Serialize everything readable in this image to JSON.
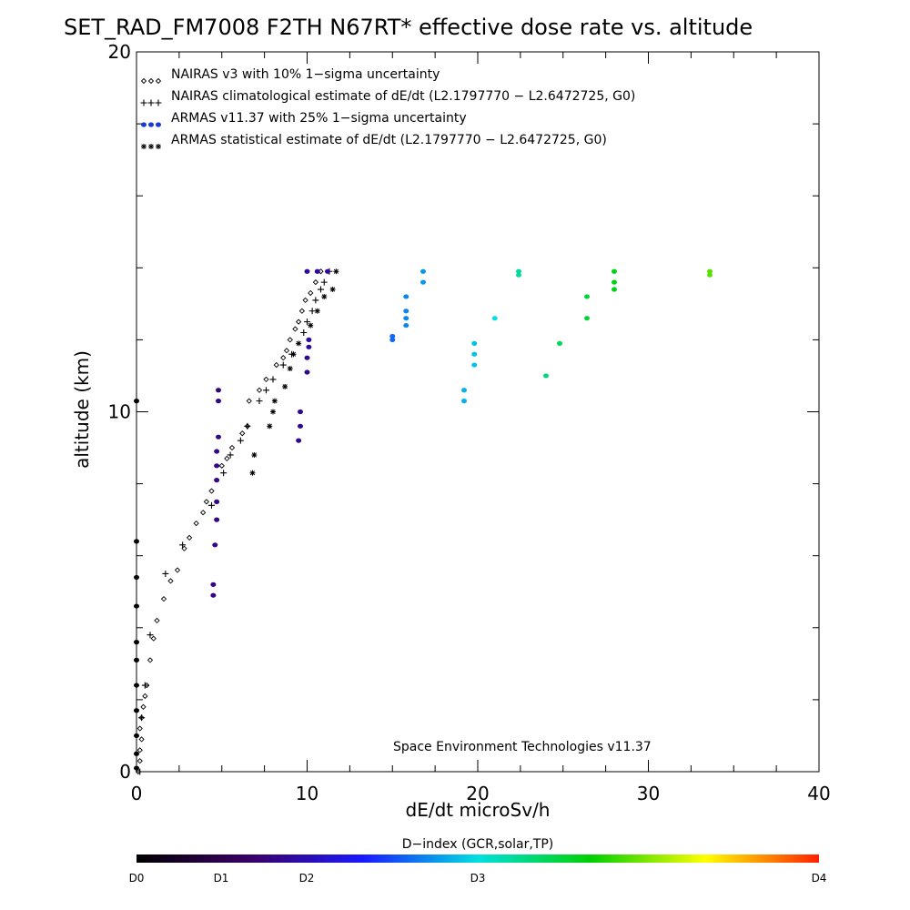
{
  "chart_data": {
    "type": "scatter",
    "title": "SET_RAD_FM7008  F2TH N67RT* effective dose rate vs. altitude",
    "xlabel": "dE/dt microSv/h",
    "ylabel": "altitude (km)",
    "xlim": [
      0,
      40
    ],
    "ylim": [
      0,
      20
    ],
    "x_ticks": [
      "0",
      "10",
      "20",
      "30",
      "40"
    ],
    "y_ticks": [
      "0",
      "10",
      "20"
    ],
    "legend_position": "top-left",
    "credit": "Space Environment Technologies v11.37",
    "colorbar": {
      "title": "D−index (GCR,solar,TP)",
      "labels": [
        "D0",
        "D1",
        "D2",
        "D3",
        "D4"
      ],
      "colors": [
        "#000000",
        "#3a0066",
        "#1a1aff",
        "#00e0e0",
        "#00d000",
        "#ffff00",
        "#ff2000"
      ]
    },
    "series": [
      {
        "name": "NAIRAS v3 with 10% 1−sigma uncertainty",
        "marker": "diamond",
        "points": [
          [
            0.1,
            0
          ],
          [
            0.2,
            0.3
          ],
          [
            0.2,
            0.6
          ],
          [
            0.3,
            0.9
          ],
          [
            0.2,
            1.2
          ],
          [
            0.3,
            1.5
          ],
          [
            0.4,
            1.8
          ],
          [
            0.5,
            2.1
          ],
          [
            0.6,
            2.4
          ],
          [
            0.8,
            3.1
          ],
          [
            1.0,
            3.7
          ],
          [
            1.2,
            4.2
          ],
          [
            1.6,
            4.8
          ],
          [
            2.0,
            5.3
          ],
          [
            2.4,
            5.6
          ],
          [
            2.8,
            6.2
          ],
          [
            3.1,
            6.5
          ],
          [
            3.5,
            6.9
          ],
          [
            3.9,
            7.2
          ],
          [
            4.1,
            7.5
          ],
          [
            4.4,
            7.8
          ],
          [
            5.0,
            8.5
          ],
          [
            5.3,
            8.7
          ],
          [
            5.6,
            9.0
          ],
          [
            6.2,
            9.4
          ],
          [
            6.5,
            9.6
          ],
          [
            6.6,
            10.3
          ],
          [
            7.2,
            10.6
          ],
          [
            7.6,
            10.9
          ],
          [
            8.2,
            11.3
          ],
          [
            8.6,
            11.5
          ],
          [
            8.8,
            11.7
          ],
          [
            9.0,
            12.0
          ],
          [
            9.3,
            12.3
          ],
          [
            9.5,
            12.5
          ],
          [
            9.7,
            12.8
          ],
          [
            9.9,
            13.1
          ],
          [
            10.2,
            13.3
          ],
          [
            10.5,
            13.6
          ],
          [
            10.8,
            13.9
          ]
        ]
      },
      {
        "name": "NAIRAS climatological estimate of dE/dt (L2.1797770 − L2.6472725, G0)",
        "marker": "plus",
        "points": [
          [
            0.2,
            0
          ],
          [
            0.3,
            1.5
          ],
          [
            0.5,
            2.4
          ],
          [
            0.8,
            3.8
          ],
          [
            1.7,
            5.5
          ],
          [
            2.7,
            6.3
          ],
          [
            4.4,
            7.4
          ],
          [
            5.1,
            8.3
          ],
          [
            5.5,
            8.8
          ],
          [
            6.1,
            9.2
          ],
          [
            6.5,
            9.6
          ],
          [
            7.2,
            10.3
          ],
          [
            7.6,
            10.6
          ],
          [
            8.0,
            10.9
          ],
          [
            8.6,
            11.3
          ],
          [
            9.1,
            11.6
          ],
          [
            9.8,
            12.2
          ],
          [
            10.0,
            12.5
          ],
          [
            10.3,
            12.8
          ],
          [
            10.5,
            13.1
          ],
          [
            10.8,
            13.4
          ],
          [
            11.0,
            13.6
          ],
          [
            11.3,
            13.9
          ]
        ]
      },
      {
        "name": "ARMAS v11.37 with 25% 1−sigma uncertainty",
        "marker": "dot",
        "points": [
          [
            0.0,
            0.1,
            0.05
          ],
          [
            0.0,
            0.5,
            0.05
          ],
          [
            0.0,
            1.0,
            0.05
          ],
          [
            0.0,
            1.7,
            0.05
          ],
          [
            0.0,
            2.4,
            0.05
          ],
          [
            0.0,
            3.1,
            0.05
          ],
          [
            0.0,
            3.6,
            0.05
          ],
          [
            0.0,
            4.6,
            0.05
          ],
          [
            0.0,
            5.4,
            0.05
          ],
          [
            0.0,
            6.4,
            0.05
          ],
          [
            0.0,
            10.3,
            0.05
          ],
          [
            4.5,
            4.9,
            0.8
          ],
          [
            4.5,
            5.2,
            0.8
          ],
          [
            4.6,
            6.3,
            0.8
          ],
          [
            4.7,
            7.0,
            0.8
          ],
          [
            4.7,
            7.5,
            0.8
          ],
          [
            4.7,
            8.1,
            0.8
          ],
          [
            4.7,
            8.5,
            0.8
          ],
          [
            4.7,
            8.9,
            0.8
          ],
          [
            4.8,
            9.3,
            0.8
          ],
          [
            4.8,
            10.3,
            0.8
          ],
          [
            4.8,
            10.6,
            0.8
          ],
          [
            9.5,
            9.2,
            0.85
          ],
          [
            9.6,
            9.6,
            0.85
          ],
          [
            9.6,
            10.0,
            0.85
          ],
          [
            10.0,
            11.1,
            0.85
          ],
          [
            10.0,
            11.5,
            0.85
          ],
          [
            10.1,
            11.8,
            0.9
          ],
          [
            10.1,
            12.0,
            0.9
          ],
          [
            10.0,
            13.9,
            0.9
          ],
          [
            10.6,
            13.9,
            0.9
          ],
          [
            11.2,
            13.9,
            0.9
          ],
          [
            15.0,
            12.0,
            1.6
          ],
          [
            15.0,
            12.1,
            1.6
          ],
          [
            15.8,
            12.4,
            1.7
          ],
          [
            15.8,
            12.6,
            1.7
          ],
          [
            15.8,
            12.8,
            1.7
          ],
          [
            15.8,
            13.2,
            1.7
          ],
          [
            16.8,
            13.6,
            1.75
          ],
          [
            16.8,
            13.9,
            1.75
          ],
          [
            19.2,
            10.3,
            1.85
          ],
          [
            19.2,
            10.6,
            1.85
          ],
          [
            19.8,
            11.3,
            1.9
          ],
          [
            19.8,
            11.6,
            1.9
          ],
          [
            19.8,
            11.9,
            1.9
          ],
          [
            21.0,
            12.6,
            2.0
          ],
          [
            22.4,
            13.8,
            2.2
          ],
          [
            22.4,
            13.9,
            2.2
          ],
          [
            24.0,
            11.0,
            2.3
          ],
          [
            24.8,
            11.9,
            2.4
          ],
          [
            26.4,
            12.6,
            2.5
          ],
          [
            26.4,
            13.2,
            2.5
          ],
          [
            28.0,
            13.4,
            2.6
          ],
          [
            28.0,
            13.6,
            2.6
          ],
          [
            28.0,
            13.9,
            2.6
          ],
          [
            33.6,
            13.8,
            2.9
          ],
          [
            33.6,
            13.9,
            2.9
          ]
        ]
      },
      {
        "name": "ARMAS statistical estimate of dE/dt (L2.1797770 − L2.6472725, G0)",
        "marker": "asterisk",
        "points": [
          [
            6.8,
            8.3
          ],
          [
            6.9,
            8.8
          ],
          [
            7.8,
            9.6
          ],
          [
            8.0,
            10.0
          ],
          [
            8.1,
            10.3
          ],
          [
            8.7,
            10.7
          ],
          [
            9.0,
            11.2
          ],
          [
            9.2,
            11.6
          ],
          [
            9.5,
            11.9
          ],
          [
            10.2,
            12.4
          ],
          [
            10.6,
            12.8
          ],
          [
            11.0,
            13.2
          ],
          [
            11.5,
            13.4
          ],
          [
            11.7,
            13.9
          ]
        ]
      }
    ]
  }
}
